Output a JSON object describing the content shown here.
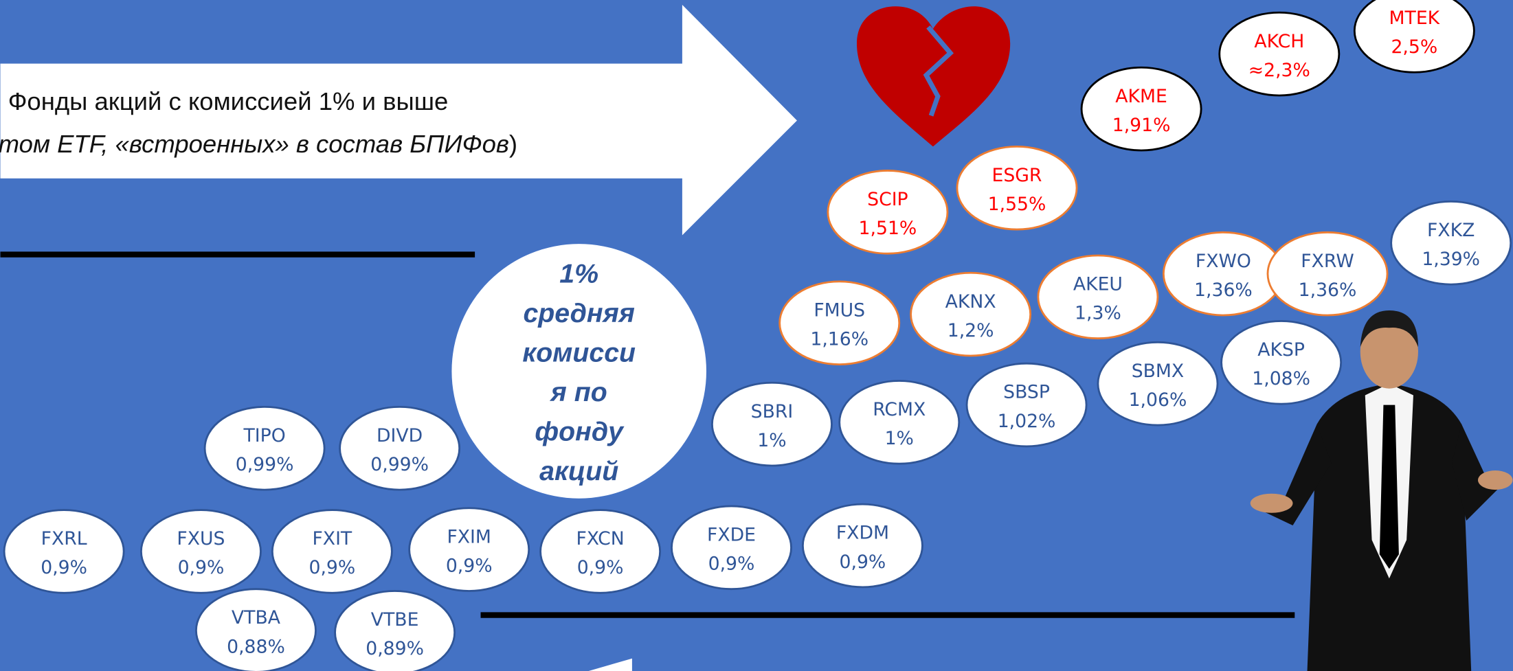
{
  "header": {
    "line1": "Фонды акций с комиссией 1% и выше",
    "line2": "том ETF, «встроенных» в состав БПИФов",
    "line2_end": ")"
  },
  "center": {
    "lines": [
      "1%",
      "средняя",
      "комисси",
      "я по",
      "фонду",
      "акций"
    ]
  },
  "bubbles": [
    {
      "name": "FXRL",
      "fee": "0,9%"
    },
    {
      "name": "FXUS",
      "fee": "0,9%"
    },
    {
      "name": "FXIT",
      "fee": "0,9%"
    },
    {
      "name": "FXIM",
      "fee": "0,9%"
    },
    {
      "name": "FXCN",
      "fee": "0,9%"
    },
    {
      "name": "FXDE",
      "fee": "0,9%"
    },
    {
      "name": "FXDM",
      "fee": "0,9%"
    },
    {
      "name": "VTBA",
      "fee": "0,88%"
    },
    {
      "name": "VTBE",
      "fee": "0,89%"
    },
    {
      "name": "TIPO",
      "fee": "0,99%"
    },
    {
      "name": "DIVD",
      "fee": "0,99%"
    },
    {
      "name": "SBRI",
      "fee": "1%"
    },
    {
      "name": "RCMX",
      "fee": "1%"
    },
    {
      "name": "SBSP",
      "fee": "1,02%"
    },
    {
      "name": "SBMX",
      "fee": "1,06%"
    },
    {
      "name": "AKSP",
      "fee": "1,08%"
    },
    {
      "name": "FMUS",
      "fee": "1,16%"
    },
    {
      "name": "AKNX",
      "fee": "1,2%"
    },
    {
      "name": "AKEU",
      "fee": "1,3%"
    },
    {
      "name": "FXWO",
      "fee": "1,36%"
    },
    {
      "name": "FXRW",
      "fee": "1,36%"
    },
    {
      "name": "FXKZ",
      "fee": "1,39%"
    },
    {
      "name": "SCIP",
      "fee": "1,51%"
    },
    {
      "name": "ESGR",
      "fee": "1,55%"
    },
    {
      "name": "AKME",
      "fee": "1,91%"
    },
    {
      "name": "AKCH",
      "fee": "≈2,3%"
    },
    {
      "name": "MTEK",
      "fee": "2,5%"
    }
  ]
}
